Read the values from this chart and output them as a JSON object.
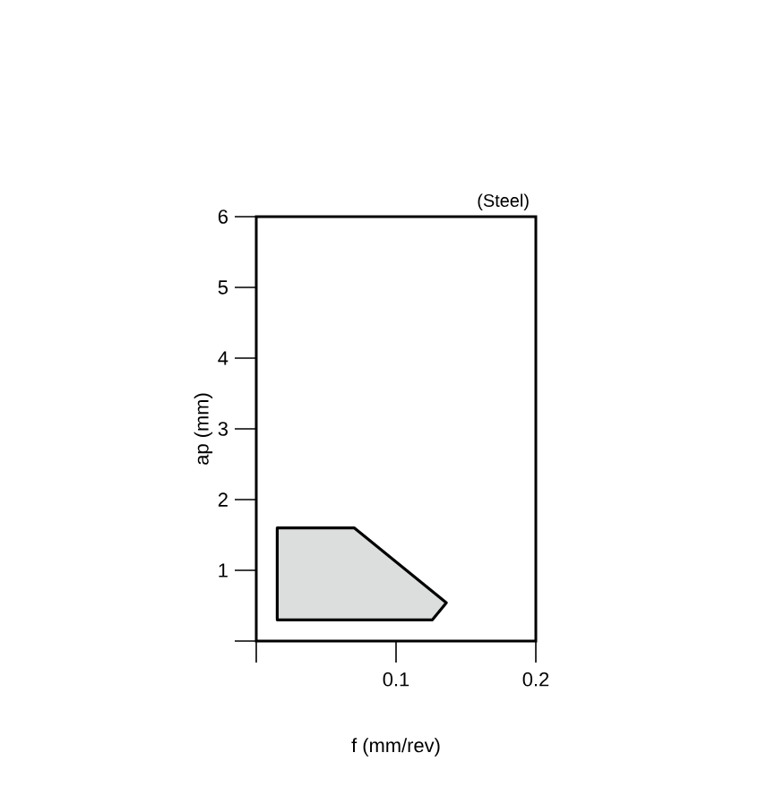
{
  "chart_data": {
    "type": "area",
    "xlabel": "f (mm/rev)",
    "ylabel": "ap (mm)",
    "annotations": [
      "(Steel)"
    ],
    "x": [
      0.015,
      0.07,
      0.136,
      0.126,
      0.015
    ],
    "values": [
      1.6,
      1.6,
      0.54,
      0.3,
      0.3
    ],
    "color": "#dcdddd",
    "xlim": [
      0,
      0.2
    ],
    "ylim": [
      0,
      6
    ],
    "xticks": [
      {
        "value": 0,
        "label": null
      },
      0.1,
      0.2
    ],
    "yticks": [
      {
        "value": 0,
        "label": null
      },
      1,
      2,
      3,
      4,
      5,
      6
    ]
  }
}
